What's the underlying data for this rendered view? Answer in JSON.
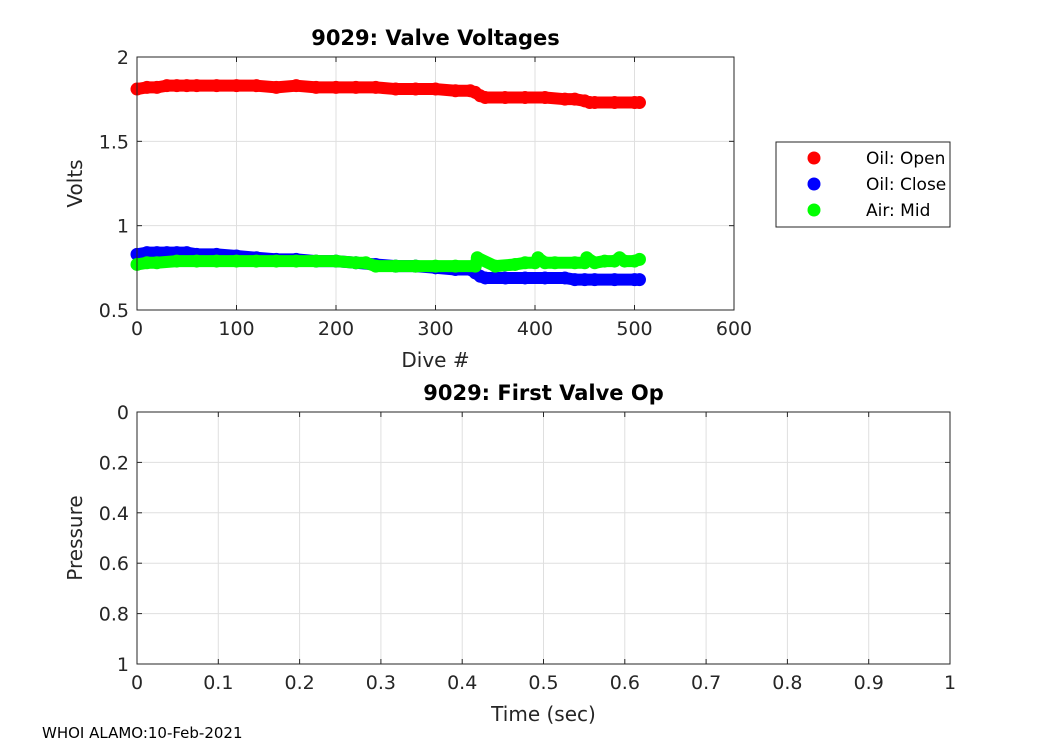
{
  "chart_data": [
    {
      "type": "scatter",
      "title": "9029: Valve Voltages",
      "xlabel": "Dive #",
      "ylabel": "Volts",
      "xlim": [
        0,
        600
      ],
      "ylim": [
        0.5,
        2
      ],
      "xticks": [
        0,
        100,
        200,
        300,
        400,
        500,
        600
      ],
      "yticks": [
        0.5,
        1,
        1.5,
        2
      ],
      "ytick_labels": [
        "0.5",
        "1",
        "1.5",
        "2"
      ],
      "grid": true,
      "legend_position": "outside-right",
      "series": [
        {
          "name": "Oil: Open",
          "color": "#ff0000",
          "x": [
            0,
            10,
            20,
            30,
            40,
            50,
            60,
            80,
            100,
            120,
            140,
            160,
            180,
            200,
            220,
            240,
            260,
            280,
            300,
            320,
            335,
            340,
            345,
            350,
            370,
            390,
            410,
            430,
            440,
            450,
            455,
            460,
            480,
            500,
            505
          ],
          "y": [
            1.81,
            1.82,
            1.82,
            1.83,
            1.83,
            1.83,
            1.83,
            1.83,
            1.83,
            1.83,
            1.82,
            1.83,
            1.82,
            1.82,
            1.82,
            1.82,
            1.81,
            1.81,
            1.81,
            1.8,
            1.8,
            1.79,
            1.77,
            1.76,
            1.76,
            1.76,
            1.76,
            1.75,
            1.75,
            1.74,
            1.73,
            1.73,
            1.73,
            1.73,
            1.73
          ]
        },
        {
          "name": "Oil: Close",
          "color": "#0000ff",
          "x": [
            0,
            10,
            20,
            30,
            40,
            50,
            60,
            80,
            100,
            120,
            140,
            160,
            180,
            200,
            220,
            240,
            260,
            280,
            300,
            320,
            335,
            340,
            345,
            350,
            370,
            390,
            410,
            430,
            440,
            450,
            460,
            480,
            500,
            505
          ],
          "y": [
            0.83,
            0.84,
            0.84,
            0.84,
            0.84,
            0.84,
            0.83,
            0.83,
            0.82,
            0.81,
            0.8,
            0.8,
            0.79,
            0.79,
            0.78,
            0.77,
            0.76,
            0.76,
            0.75,
            0.74,
            0.74,
            0.72,
            0.7,
            0.69,
            0.69,
            0.69,
            0.69,
            0.69,
            0.68,
            0.68,
            0.68,
            0.68,
            0.68,
            0.68
          ]
        },
        {
          "name": "Air: Mid",
          "color": "#00ff00",
          "x": [
            0,
            10,
            20,
            40,
            60,
            80,
            100,
            120,
            140,
            160,
            180,
            200,
            220,
            230,
            240,
            260,
            280,
            300,
            320,
            340,
            342,
            360,
            380,
            390,
            400,
            403,
            410,
            420,
            440,
            450,
            452,
            460,
            470,
            480,
            485,
            490,
            500,
            505
          ],
          "y": [
            0.77,
            0.78,
            0.78,
            0.79,
            0.79,
            0.79,
            0.79,
            0.79,
            0.79,
            0.79,
            0.79,
            0.79,
            0.78,
            0.78,
            0.76,
            0.76,
            0.76,
            0.76,
            0.76,
            0.76,
            0.81,
            0.76,
            0.77,
            0.78,
            0.78,
            0.81,
            0.78,
            0.78,
            0.78,
            0.78,
            0.81,
            0.78,
            0.79,
            0.79,
            0.81,
            0.79,
            0.79,
            0.8
          ]
        }
      ]
    },
    {
      "type": "line",
      "title": "9029: First Valve Op",
      "xlabel": "Time (sec)",
      "ylabel": "Pressure",
      "xlim": [
        0,
        1
      ],
      "ylim": [
        0,
        1
      ],
      "y_reversed": true,
      "xticks": [
        0,
        0.1,
        0.2,
        0.3,
        0.4,
        0.5,
        0.6,
        0.7,
        0.8,
        0.9,
        1
      ],
      "xtick_labels": [
        "0",
        "0.1",
        "0.2",
        "0.3",
        "0.4",
        "0.5",
        "0.6",
        "0.7",
        "0.8",
        "0.9",
        "1"
      ],
      "yticks": [
        0,
        0.2,
        0.4,
        0.6,
        0.8,
        1
      ],
      "ytick_labels": [
        "0",
        "0.2",
        "0.4",
        "0.6",
        "0.8",
        "1"
      ],
      "grid": true,
      "series": []
    }
  ],
  "footer": "WHOI ALAMO:10-Feb-2021"
}
